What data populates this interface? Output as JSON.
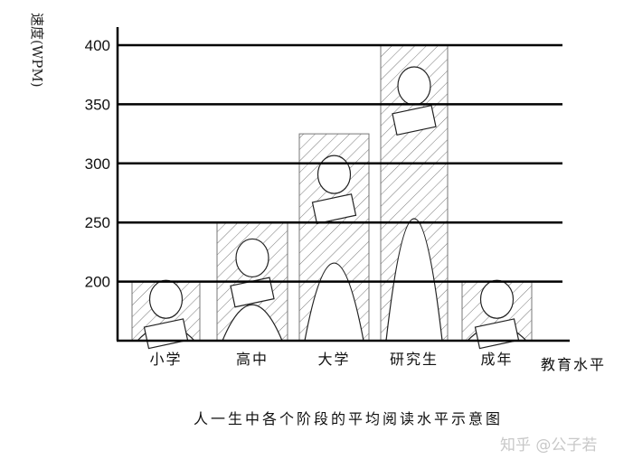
{
  "chart_data": {
    "type": "bar",
    "title": "人一生中各个阶段的平均阅读水平示意图",
    "xlabel": "教育水平",
    "ylabel": "速度(WPM)",
    "categories": [
      "小学",
      "高中",
      "大学",
      "研究生",
      "成年"
    ],
    "values": [
      200,
      250,
      325,
      400,
      200
    ],
    "ylim": [
      150,
      400
    ],
    "yticks": [
      200,
      250,
      300,
      350,
      400
    ],
    "grid": true,
    "bar_style": "hatched line-art illustrations of readers"
  },
  "watermark": "知乎 @公子若"
}
